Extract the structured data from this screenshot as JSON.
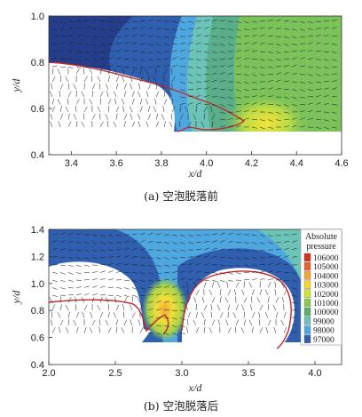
{
  "figure": {
    "captions": {
      "a": "(a) 空泡脱落前",
      "b": "(b) 空泡脱落后"
    }
  },
  "chart_data": [
    {
      "type": "heatmap",
      "panel": "a",
      "xlabel": "x/d",
      "ylabel": "y/d",
      "xlim": [
        3.3,
        4.6
      ],
      "ylim": [
        0.4,
        1.0
      ],
      "xticks": [
        "3.4",
        "3.6",
        "3.8",
        "4.0",
        "4.2",
        "4.4",
        "4.6"
      ],
      "yticks": [
        "0.4",
        "0.6",
        "0.8",
        "1.0"
      ],
      "overlays": [
        "velocity vectors",
        "cavity boundary"
      ],
      "cavity_outline_color": "#c0282e"
    },
    {
      "type": "heatmap",
      "panel": "b",
      "xlabel": "x/d",
      "ylabel": "y/d",
      "xlim": [
        2.0,
        4.2
      ],
      "ylim": [
        0.4,
        1.4
      ],
      "xticks": [
        "2.0",
        "2.5",
        "3.0",
        "3.5",
        "4.0"
      ],
      "yticks": [
        "0.4",
        "0.6",
        "0.8",
        "1.0",
        "1.2",
        "1.4"
      ],
      "overlays": [
        "velocity vectors",
        "cavity boundary"
      ],
      "cavity_outline_color": "#c0282e",
      "legend": {
        "title_line1": "Absolute",
        "title_line2": "pressure",
        "placement": "right",
        "levels": [
          {
            "label": "106000",
            "color": "#d7301f"
          },
          {
            "label": "105000",
            "color": "#e8622a"
          },
          {
            "label": "104000",
            "color": "#f3a33a"
          },
          {
            "label": "103000",
            "color": "#f4d935"
          },
          {
            "label": "102000",
            "color": "#cde23e"
          },
          {
            "label": "101000",
            "color": "#8bc752"
          },
          {
            "label": "100000",
            "color": "#58b06a"
          },
          {
            "label": "99000",
            "color": "#6cc4b8"
          },
          {
            "label": "98000",
            "color": "#4fa7df"
          },
          {
            "label": "97000",
            "color": "#2f5fae"
          }
        ]
      }
    }
  ]
}
